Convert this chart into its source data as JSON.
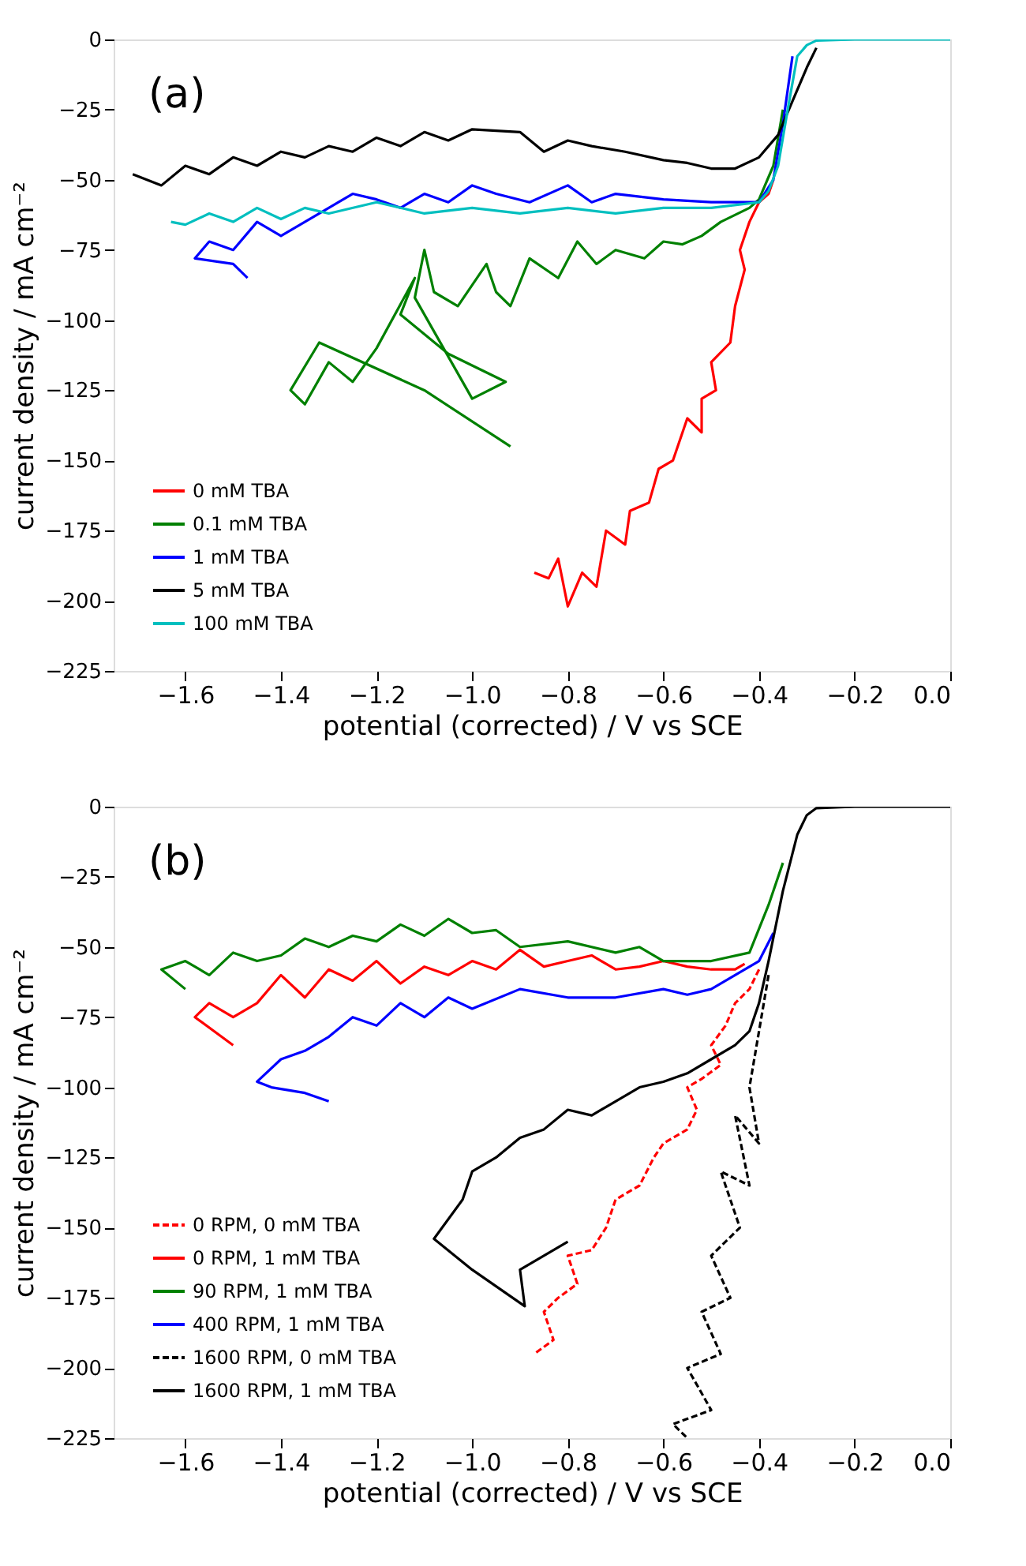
{
  "chart_data": [
    {
      "type": "line",
      "xlabel": "potential (corrected) / V vs SCE",
      "ylabel": "current density / mA cm⁻²",
      "annotations": [
        "(a)"
      ],
      "xlim": [
        -1.75,
        0
      ],
      "xticks": [
        {
          "value": -1.6,
          "label": "−1.6"
        },
        {
          "value": -1.4,
          "label": "−1.4"
        },
        {
          "value": -1.2,
          "label": "−1.2"
        },
        {
          "value": -1.0,
          "label": "−1.0"
        },
        {
          "value": -0.8,
          "label": "−0.8"
        },
        {
          "value": -0.6,
          "label": "−0.6"
        },
        {
          "value": -0.4,
          "label": "−0.4"
        },
        {
          "value": -0.2,
          "label": "−0.2"
        },
        {
          "value": 0,
          "label": "0.0"
        }
      ],
      "ylim": [
        -225,
        0
      ],
      "yticks": [
        -225,
        -200,
        -175,
        -150,
        -125,
        -100,
        -75,
        -50,
        -25,
        0
      ],
      "grid": false,
      "legend": "bottom left",
      "marker": "none",
      "series": [
        {
          "name": "0 mM TBA",
          "color": "#ff0000",
          "line_style": "solid",
          "x": [
            -0.37,
            -0.38,
            -0.4,
            -0.42,
            -0.44,
            -0.43,
            -0.45,
            -0.46,
            -0.5,
            -0.49,
            -0.52,
            -0.52,
            -0.55,
            -0.58,
            -0.61,
            -0.63,
            -0.67,
            -0.68,
            -0.72,
            -0.74,
            -0.77,
            -0.8,
            -0.82,
            -0.84,
            -0.87
          ],
          "values": [
            -50,
            -55,
            -58,
            -65,
            -75,
            -82,
            -95,
            -108,
            -115,
            -125,
            -128,
            -140,
            -135,
            -150,
            -153,
            -165,
            -168,
            -180,
            -175,
            -195,
            -190,
            -202,
            -185,
            -192,
            -190
          ]
        },
        {
          "name": "0.1 mM TBA",
          "color": "#008000",
          "line_style": "solid",
          "x": [
            -0.35,
            -0.37,
            -0.4,
            -0.42,
            -0.48,
            -0.52,
            -0.56,
            -0.6,
            -0.64,
            -0.7,
            -0.74,
            -0.78,
            -0.82,
            -0.88,
            -0.92,
            -0.95,
            -0.97,
            -1.03,
            -1.08,
            -1.1,
            -1.12,
            -1.0,
            -0.93,
            -1.05,
            -1.15,
            -1.12,
            -1.2,
            -1.25,
            -1.3,
            -1.35,
            -1.38,
            -1.32,
            -1.1,
            -0.92
          ],
          "values": [
            -25,
            -45,
            -57,
            -60,
            -65,
            -70,
            -73,
            -72,
            -78,
            -75,
            -80,
            -72,
            -85,
            -78,
            -95,
            -90,
            -80,
            -95,
            -90,
            -75,
            -92,
            -128,
            -122,
            -112,
            -98,
            -85,
            -110,
            -122,
            -115,
            -130,
            -125,
            -108,
            -125,
            -145
          ]
        },
        {
          "name": "1 mM TBA",
          "color": "#0000ff",
          "line_style": "solid",
          "x": [
            -0.33,
            -0.35,
            -0.37,
            -0.4,
            -0.5,
            -0.6,
            -0.7,
            -0.75,
            -0.8,
            -0.88,
            -0.95,
            -1.0,
            -1.05,
            -1.1,
            -1.15,
            -1.2,
            -1.25,
            -1.3,
            -1.35,
            -1.4,
            -1.45,
            -1.5,
            -1.55,
            -1.58,
            -1.5,
            -1.47
          ],
          "values": [
            -6,
            -30,
            -50,
            -58,
            -58,
            -57,
            -55,
            -58,
            -52,
            -58,
            -55,
            -52,
            -58,
            -55,
            -60,
            -57,
            -55,
            -60,
            -65,
            -70,
            -65,
            -75,
            -72,
            -78,
            -80,
            -85
          ]
        },
        {
          "name": "5 mM TBA",
          "color": "#000000",
          "line_style": "solid",
          "x": [
            -0.28,
            -0.3,
            -0.33,
            -0.36,
            -0.4,
            -0.45,
            -0.5,
            -0.55,
            -0.6,
            -0.68,
            -0.75,
            -0.8,
            -0.85,
            -0.9,
            -1.0,
            -1.05,
            -1.1,
            -1.15,
            -1.2,
            -1.25,
            -1.3,
            -1.35,
            -1.4,
            -1.45,
            -1.5,
            -1.55,
            -1.6,
            -1.65,
            -1.71
          ],
          "values": [
            -3,
            -10,
            -22,
            -34,
            -42,
            -46,
            -46,
            -44,
            -43,
            -40,
            -38,
            -36,
            -40,
            -33,
            -32,
            -36,
            -33,
            -38,
            -35,
            -40,
            -38,
            -42,
            -40,
            -45,
            -42,
            -48,
            -45,
            -52,
            -48
          ]
        },
        {
          "name": "100 mM TBA",
          "color": "#00bfbf",
          "line_style": "solid",
          "x": [
            0,
            -0.2,
            -0.28,
            -0.3,
            -0.32,
            -0.34,
            -0.36,
            -0.38,
            -0.4,
            -0.5,
            -0.6,
            -0.7,
            -0.8,
            -0.9,
            -1.0,
            -1.1,
            -1.2,
            -1.3,
            -1.35,
            -1.4,
            -1.45,
            -1.5,
            -1.55,
            -1.6,
            -1.63
          ],
          "values": [
            0,
            0,
            -0.4,
            -2,
            -6,
            -25,
            -45,
            -54,
            -58,
            -60,
            -60,
            -62,
            -60,
            -62,
            -60,
            -62,
            -58,
            -62,
            -60,
            -64,
            -60,
            -65,
            -62,
            -66,
            -65
          ]
        }
      ]
    },
    {
      "type": "line",
      "xlabel": "potential (corrected) / V vs SCE",
      "ylabel": "current density / mA cm⁻²",
      "annotations": [
        "(b)"
      ],
      "xlim": [
        -1.75,
        0
      ],
      "xticks": [
        {
          "value": -1.6,
          "label": "−1.6"
        },
        {
          "value": -1.4,
          "label": "−1.4"
        },
        {
          "value": -1.2,
          "label": "−1.2"
        },
        {
          "value": -1.0,
          "label": "−1.0"
        },
        {
          "value": -0.8,
          "label": "−0.8"
        },
        {
          "value": -0.6,
          "label": "−0.6"
        },
        {
          "value": -0.4,
          "label": "−0.4"
        },
        {
          "value": -0.2,
          "label": "−0.2"
        },
        {
          "value": 0,
          "label": "0.0"
        }
      ],
      "ylim": [
        -225,
        0
      ],
      "yticks": [
        -225,
        -200,
        -175,
        -150,
        -125,
        -100,
        -75,
        -50,
        -25,
        0
      ],
      "grid": false,
      "legend": "bottom left",
      "marker": "none",
      "series": [
        {
          "name": "0 RPM, 0 mM TBA",
          "color": "#ff0000",
          "line_style": "dashed",
          "x": [
            -0.4,
            -0.42,
            -0.45,
            -0.47,
            -0.5,
            -0.48,
            -0.52,
            -0.55,
            -0.53,
            -0.55,
            -0.6,
            -0.62,
            -0.65,
            -0.7,
            -0.72,
            -0.75,
            -0.8,
            -0.78,
            -0.82,
            -0.85,
            -0.83,
            -0.87
          ],
          "values": [
            -58,
            -65,
            -70,
            -78,
            -85,
            -92,
            -97,
            -100,
            -108,
            -115,
            -120,
            -125,
            -135,
            -140,
            -150,
            -158,
            -160,
            -170,
            -175,
            -180,
            -190,
            -195
          ]
        },
        {
          "name": "0 RPM, 1 mM TBA",
          "color": "#ff0000",
          "line_style": "solid",
          "x": [
            -0.43,
            -0.45,
            -0.5,
            -0.55,
            -0.6,
            -0.65,
            -0.7,
            -0.75,
            -0.8,
            -0.85,
            -0.9,
            -0.95,
            -1.0,
            -1.05,
            -1.1,
            -1.15,
            -1.2,
            -1.25,
            -1.3,
            -1.35,
            -1.4,
            -1.45,
            -1.5,
            -1.55,
            -1.58,
            -1.5
          ],
          "values": [
            -56,
            -58,
            -58,
            -57,
            -55,
            -57,
            -58,
            -53,
            -55,
            -57,
            -51,
            -58,
            -55,
            -60,
            -57,
            -63,
            -55,
            -62,
            -58,
            -68,
            -60,
            -70,
            -75,
            -70,
            -75,
            -85
          ]
        },
        {
          "name": "90 RPM, 1 mM TBA",
          "color": "#008000",
          "line_style": "solid",
          "x": [
            -0.35,
            -0.38,
            -0.42,
            -0.5,
            -0.6,
            -0.65,
            -0.7,
            -0.8,
            -0.9,
            -0.95,
            -1.0,
            -1.05,
            -1.1,
            -1.15,
            -1.2,
            -1.25,
            -1.3,
            -1.35,
            -1.4,
            -1.45,
            -1.5,
            -1.55,
            -1.6,
            -1.65,
            -1.6
          ],
          "values": [
            -20,
            -35,
            -52,
            -55,
            -55,
            -50,
            -52,
            -48,
            -50,
            -44,
            -45,
            -40,
            -46,
            -42,
            -48,
            -46,
            -50,
            -47,
            -53,
            -55,
            -52,
            -60,
            -55,
            -58,
            -65
          ]
        },
        {
          "name": "400 RPM, 1 mM TBA",
          "color": "#0000ff",
          "line_style": "solid",
          "x": [
            -0.37,
            -0.4,
            -0.45,
            -0.5,
            -0.55,
            -0.6,
            -0.7,
            -0.8,
            -0.9,
            -1.0,
            -1.05,
            -1.1,
            -1.15,
            -1.2,
            -1.25,
            -1.3,
            -1.35,
            -1.4,
            -1.45,
            -1.42,
            -1.35,
            -1.3
          ],
          "values": [
            -45,
            -55,
            -60,
            -65,
            -67,
            -65,
            -68,
            -68,
            -65,
            -72,
            -68,
            -75,
            -70,
            -78,
            -75,
            -82,
            -87,
            -90,
            -98,
            -100,
            -102,
            -105
          ]
        },
        {
          "name": "1600 RPM, 0 mM TBA",
          "color": "#000000",
          "line_style": "dashed",
          "x": [
            -0.38,
            -0.4,
            -0.42,
            -0.4,
            -0.45,
            -0.42,
            -0.48,
            -0.44,
            -0.5,
            -0.46,
            -0.52,
            -0.48,
            -0.55,
            -0.5,
            -0.58,
            -0.55
          ],
          "values": [
            -60,
            -80,
            -100,
            -120,
            -110,
            -135,
            -130,
            -150,
            -160,
            -175,
            -180,
            -195,
            -200,
            -215,
            -220,
            -225
          ]
        },
        {
          "name": "1600 RPM, 1 mM TBA",
          "color": "#000000",
          "line_style": "solid",
          "x": [
            0,
            -0.2,
            -0.28,
            -0.3,
            -0.32,
            -0.35,
            -0.38,
            -0.4,
            -0.42,
            -0.45,
            -0.5,
            -0.55,
            -0.6,
            -0.65,
            -0.7,
            -0.75,
            -0.8,
            -0.85,
            -0.9,
            -0.95,
            -1.0,
            -1.02,
            -1.08,
            -1.0,
            -0.89,
            -0.9,
            -0.8
          ],
          "values": [
            0,
            0,
            -0.5,
            -3,
            -10,
            -30,
            -55,
            -70,
            -80,
            -85,
            -90,
            -95,
            -98,
            -100,
            -105,
            -110,
            -108,
            -115,
            -118,
            -125,
            -130,
            -140,
            -154,
            -165,
            -178,
            -165,
            -155
          ]
        }
      ]
    }
  ]
}
